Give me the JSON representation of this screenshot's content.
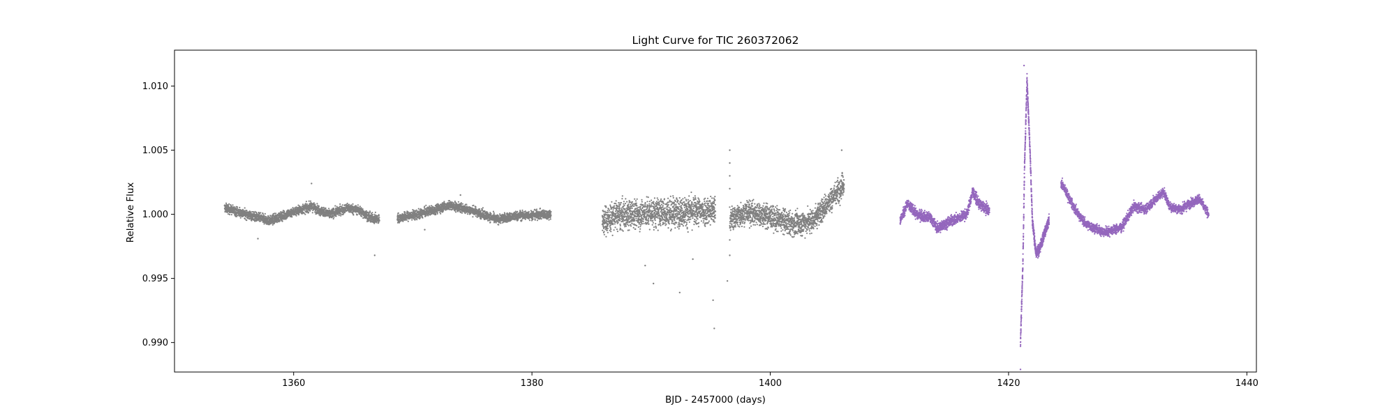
{
  "chart_data": {
    "type": "scatter",
    "title": "Light Curve for TIC 260372062",
    "xlabel": "BJD - 2457000 (days)",
    "ylabel": "Relative Flux",
    "xlim": [
      1350,
      1440.8
    ],
    "ylim": [
      0.9877,
      1.0128
    ],
    "xticks": [
      1360,
      1380,
      1400,
      1420,
      1440
    ],
    "yticks": [
      0.99,
      0.995,
      1.0,
      1.005,
      1.01
    ],
    "xtick_labels": [
      "1360",
      "1380",
      "1400",
      "1420",
      "1440"
    ],
    "ytick_labels": [
      "0.990",
      "0.995",
      "1.000",
      "1.005",
      "1.010"
    ],
    "grid": false,
    "legend": "none",
    "colors": {
      "sector_a": "#808080",
      "sector_b": "#9467bd",
      "axes": "#000000"
    },
    "series": [
      {
        "color": "#808080",
        "segments": [
          {
            "x_range": [
              1354.2,
              1367.2
            ],
            "scatter": 0.00035,
            "trend": [
              [
                1354.2,
                1000.5
              ],
              [
                1356.0,
                1000.0
              ],
              [
                1358.0,
                999.5
              ],
              [
                1360.0,
                1000.2
              ],
              [
                1361.5,
                1000.6
              ],
              [
                1363.0,
                1000.0
              ],
              [
                1364.5,
                1000.5
              ],
              [
                1365.5,
                1000.3
              ],
              [
                1366.5,
                999.7
              ],
              [
                1367.2,
                999.6
              ]
            ],
            "outliers": [
              [
                1361.5,
                1002.4
              ],
              [
                1366.8,
                996.8
              ],
              [
                1357.0,
                998.1
              ]
            ]
          },
          {
            "x_range": [
              1368.7,
              1381.6
            ],
            "scatter": 0.00035,
            "trend": [
              [
                1368.7,
                999.7
              ],
              [
                1370.5,
                1000.0
              ],
              [
                1373.0,
                1000.7
              ],
              [
                1375.0,
                1000.3
              ],
              [
                1377.0,
                999.6
              ],
              [
                1379.0,
                999.9
              ],
              [
                1381.6,
                1000.0
              ]
            ],
            "outliers": [
              [
                1371.0,
                998.8
              ],
              [
                1374.0,
                1001.5
              ]
            ]
          },
          {
            "x_range": [
              1385.9,
              1395.4
            ],
            "scatter": 0.0011,
            "trend": [
              [
                1385.9,
                999.4
              ],
              [
                1387.0,
                999.9
              ],
              [
                1390.0,
                1000.1
              ],
              [
                1393.0,
                1000.2
              ],
              [
                1395.4,
                1000.3
              ]
            ],
            "outliers": [
              [
                1390.2,
                994.6
              ],
              [
                1392.4,
                993.9
              ],
              [
                1395.2,
                993.3
              ],
              [
                1395.3,
                991.1
              ],
              [
                1389.5,
                996.0
              ],
              [
                1393.5,
                996.5
              ]
            ]
          },
          {
            "x_range": [
              1396.6,
              1406.2
            ],
            "scatter": 0.0009,
            "trend": [
              [
                1396.6,
                999.6
              ],
              [
                1398.0,
                1000.2
              ],
              [
                1400.0,
                999.8
              ],
              [
                1402.0,
                999.2
              ],
              [
                1403.5,
                999.5
              ],
              [
                1405.0,
                1001.0
              ],
              [
                1406.2,
                1002.5
              ]
            ],
            "outliers": [
              [
                1396.6,
                1005.0
              ],
              [
                1396.6,
                1004.0
              ],
              [
                1396.6,
                1003.0
              ],
              [
                1396.6,
                1002.0
              ],
              [
                1396.6,
                998.0
              ],
              [
                1396.6,
                996.8
              ],
              [
                1396.4,
                994.8
              ],
              [
                1406.0,
                1005.0
              ]
            ]
          }
        ]
      },
      {
        "color": "#9467bd",
        "segments": [
          {
            "x_range": [
              1410.9,
              1418.4
            ],
            "scatter": 0.0004,
            "trend": [
              [
                1410.9,
                999.5
              ],
              [
                1411.5,
                1000.8
              ],
              [
                1412.3,
                1000.0
              ],
              [
                1413.5,
                999.7
              ],
              [
                1414.0,
                998.9
              ],
              [
                1415.0,
                999.4
              ],
              [
                1416.5,
                1000.0
              ],
              [
                1417.0,
                1001.8
              ],
              [
                1417.5,
                1000.8
              ],
              [
                1418.4,
                1000.3
              ]
            ],
            "outliers": []
          },
          {
            "x_range": [
              1421.0,
              1423.4
            ],
            "scatter": 0.0004,
            "trend": [
              [
                1421.0,
                990.0
              ],
              [
                1421.2,
                996.0
              ],
              [
                1421.35,
                1004.0
              ],
              [
                1421.55,
                1010.5
              ],
              [
                1421.8,
                1005.0
              ],
              [
                1422.0,
                999.5
              ],
              [
                1422.3,
                997.0
              ],
              [
                1422.6,
                997.3
              ],
              [
                1423.0,
                998.5
              ],
              [
                1423.4,
                999.5
              ]
            ],
            "outliers": [
              [
                1421.0,
                987.9
              ],
              [
                1421.3,
                1011.6
              ]
            ]
          },
          {
            "x_range": [
              1424.4,
              1436.8
            ],
            "scatter": 0.00035,
            "trend": [
              [
                1424.4,
                1002.5
              ],
              [
                1425.5,
                1000.5
              ],
              [
                1426.5,
                999.2
              ],
              [
                1428.0,
                998.6
              ],
              [
                1429.5,
                999.0
              ],
              [
                1430.5,
                1000.6
              ],
              [
                1431.5,
                1000.4
              ],
              [
                1433.0,
                1001.8
              ],
              [
                1433.5,
                1000.6
              ],
              [
                1434.5,
                1000.4
              ],
              [
                1435.5,
                1001.0
              ],
              [
                1436.0,
                1001.2
              ],
              [
                1436.8,
                1000.0
              ]
            ],
            "outliers": []
          }
        ]
      }
    ]
  }
}
